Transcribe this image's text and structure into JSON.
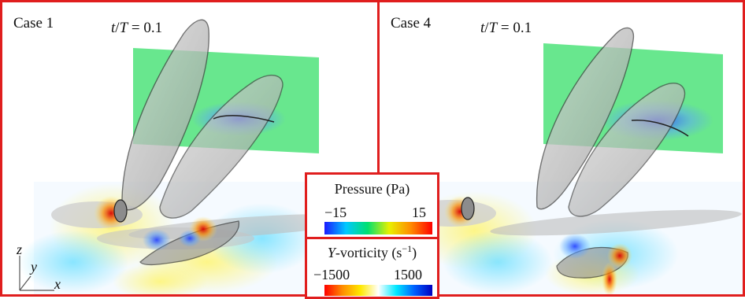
{
  "panels": [
    {
      "case_label": "Case 1",
      "time_var": "t",
      "time_sep": "/",
      "time_var2": "T",
      "time_value": " = 0.1"
    },
    {
      "case_label": "Case 4",
      "time_var": "t",
      "time_sep": "/",
      "time_var2": "T",
      "time_value": " = 0.1"
    }
  ],
  "axes": {
    "z": "z",
    "y": "y",
    "x": "x"
  },
  "legend": {
    "pressure": {
      "title": "Pressure (Pa)",
      "min": "−15",
      "max": "15",
      "colors": [
        "#1a1aff",
        "#00c8ff",
        "#00e070",
        "#e8f000",
        "#ff8c00",
        "#ff0000"
      ]
    },
    "vorticity": {
      "title_italic": "Y",
      "title_rest": "-vorticity (s",
      "title_exp": "−1",
      "title_close": ")",
      "min": "−1500",
      "max": "1500",
      "colors": [
        "#ff0000",
        "#ff8c00",
        "#ffe800",
        "#ffffff",
        "#00e8ff",
        "#0060ff",
        "#0000c0"
      ]
    }
  }
}
